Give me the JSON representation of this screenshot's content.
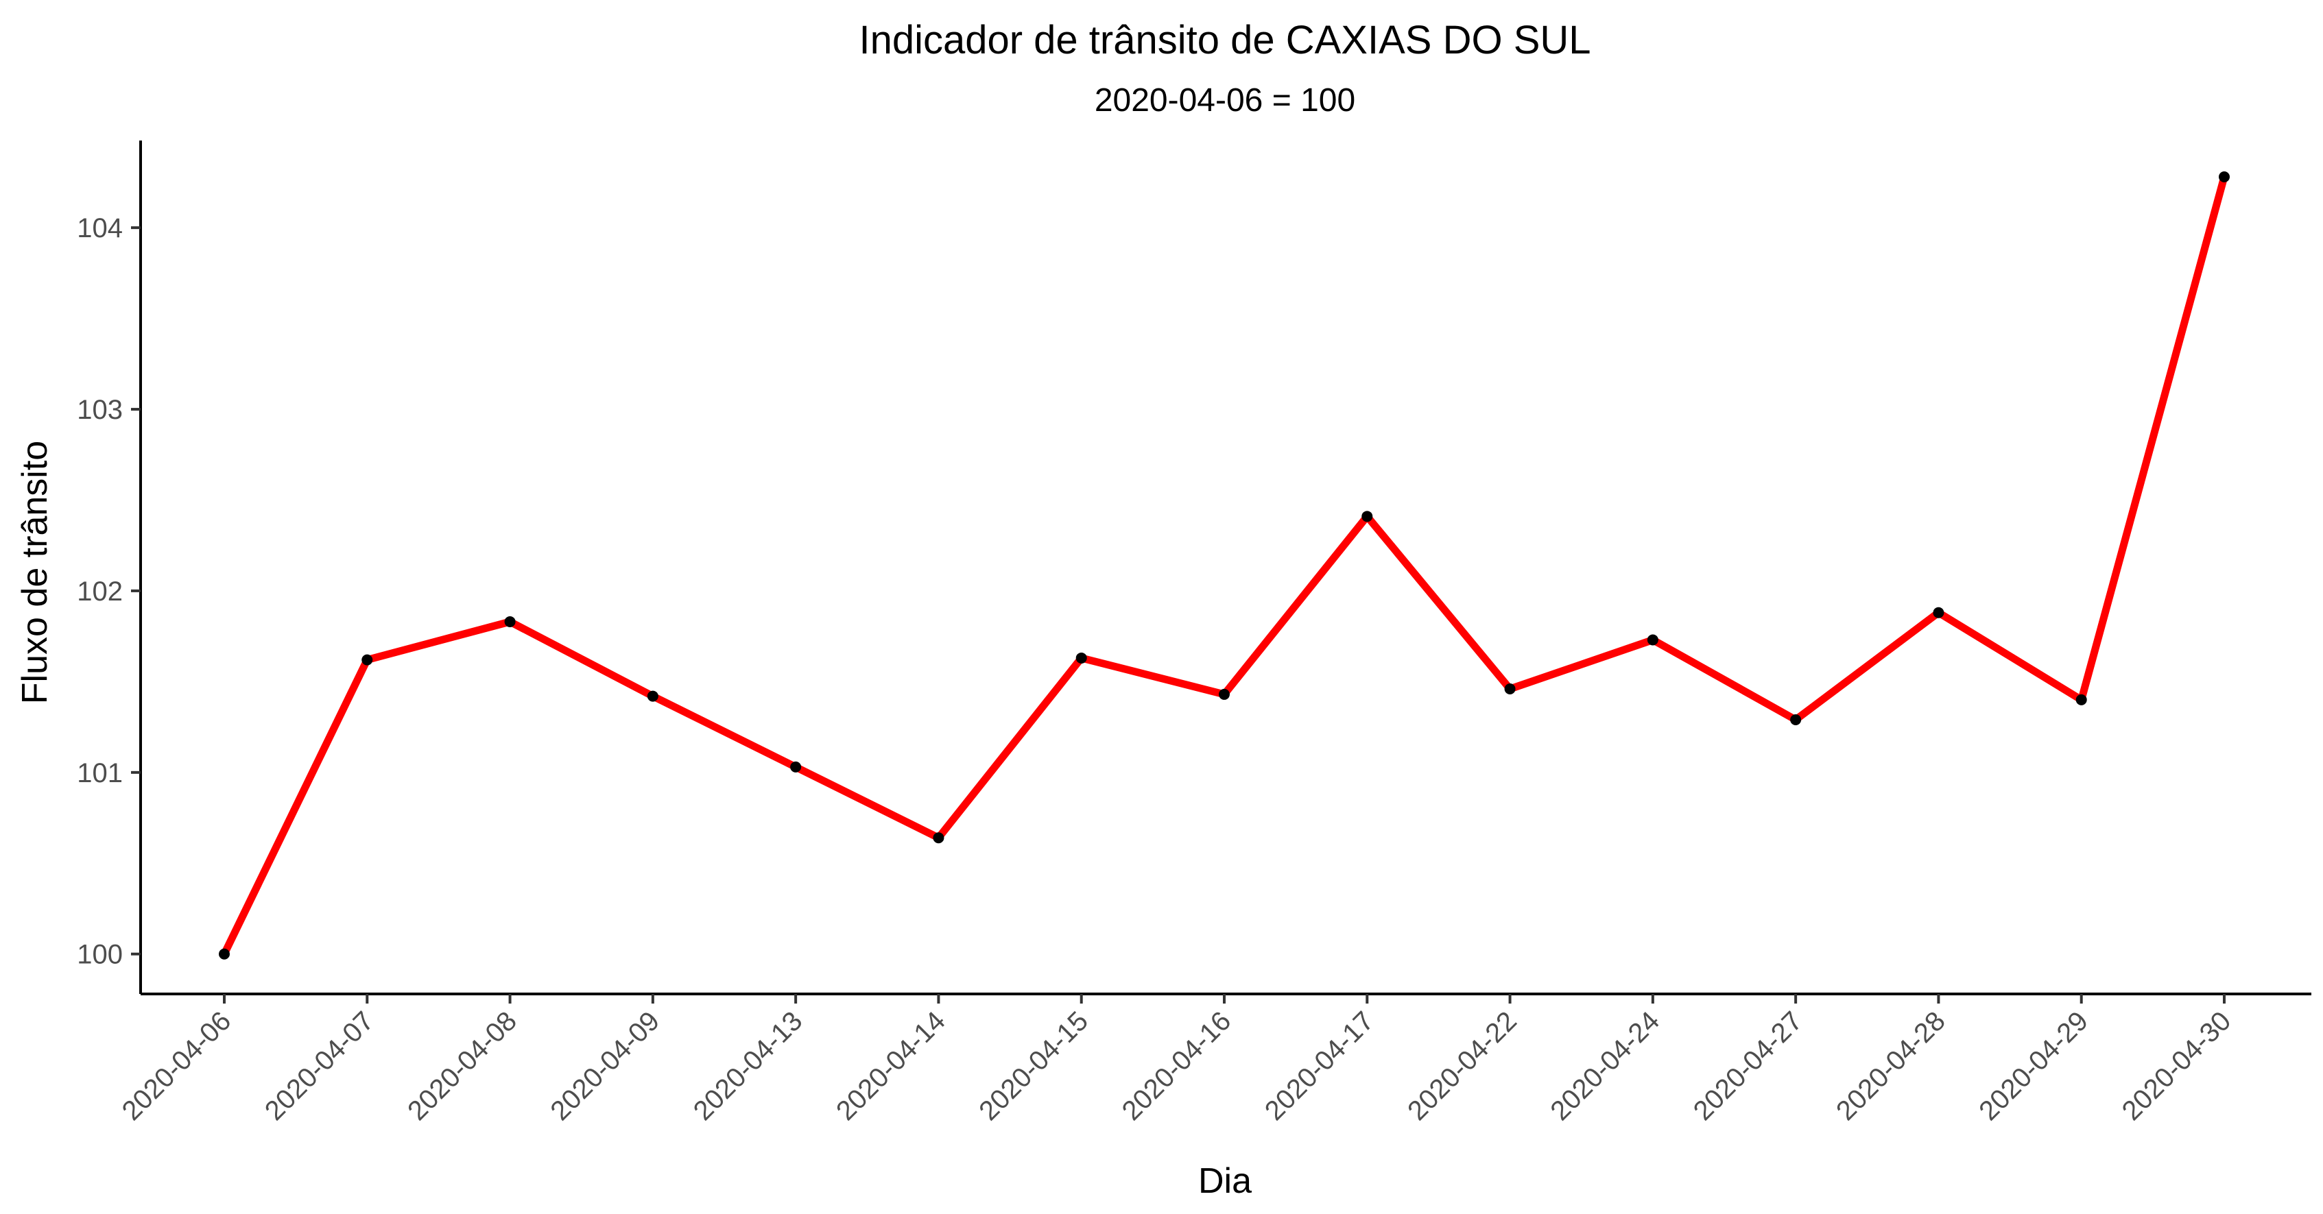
{
  "chart_data": {
    "type": "line",
    "title": "Indicador de trânsito de CAXIAS DO SUL",
    "subtitle": "2020-04-06 = 100",
    "xlabel": "Dia",
    "ylabel": "Fluxo de trânsito",
    "categories": [
      "2020-04-06",
      "2020-04-07",
      "2020-04-08",
      "2020-04-09",
      "2020-04-13",
      "2020-04-14",
      "2020-04-15",
      "2020-04-16",
      "2020-04-17",
      "2020-04-22",
      "2020-04-24",
      "2020-04-27",
      "2020-04-28",
      "2020-04-29",
      "2020-04-30"
    ],
    "series": [
      {
        "values": [
          100.0,
          101.62,
          101.83,
          101.42,
          101.03,
          100.64,
          101.63,
          101.43,
          102.41,
          101.46,
          101.73,
          101.29,
          101.88,
          101.4,
          104.28
        ]
      }
    ],
    "ylim": [
      99.78,
      104.48
    ],
    "yticks": [
      100,
      101,
      102,
      103,
      104
    ],
    "grid": false,
    "legend": "none",
    "colors": {
      "line": "#ff0000",
      "point": "#000000",
      "axis": "#000000",
      "tick_label": "#4d4d4d"
    }
  }
}
